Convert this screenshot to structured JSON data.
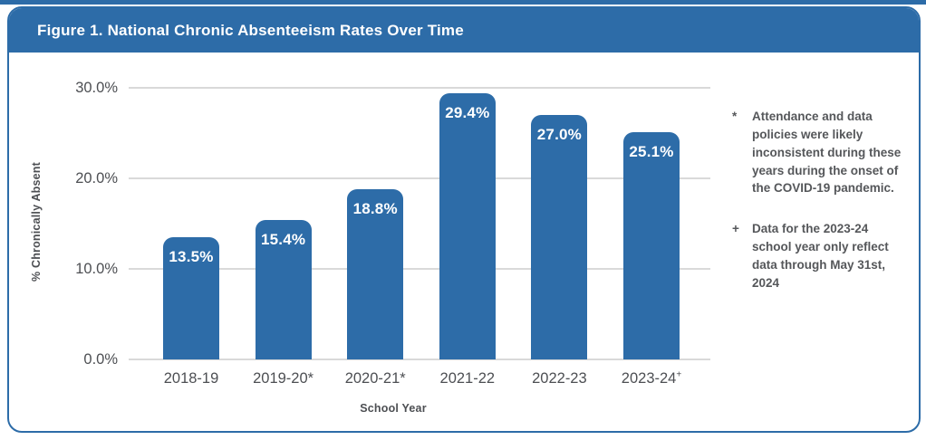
{
  "figure": {
    "title": "Figure 1. National Chronic Absenteeism Rates Over Time"
  },
  "chart_data": {
    "type": "bar",
    "title": "Figure 1. National Chronic Absenteeism Rates Over Time",
    "xlabel": "School Year",
    "ylabel": "% Chronically Absent",
    "ylim": [
      0,
      30
    ],
    "grid": true,
    "legend": "none",
    "categories": [
      {
        "label": "2018-19",
        "mark": "",
        "sup": false
      },
      {
        "label": "2019-20",
        "mark": "*",
        "sup": false
      },
      {
        "label": "2020-21",
        "mark": "*",
        "sup": false
      },
      {
        "label": "2021-22",
        "mark": "",
        "sup": false
      },
      {
        "label": "2022-23",
        "mark": "",
        "sup": false
      },
      {
        "label": "2023-24",
        "mark": "+",
        "sup": true
      }
    ],
    "values": [
      13.5,
      15.4,
      18.8,
      29.4,
      27.0,
      25.1
    ],
    "bar_labels": [
      "13.5%",
      "15.4%",
      "18.8%",
      "29.4%",
      "27.0%",
      "25.1%"
    ],
    "yticks": [
      {
        "value": 0,
        "label": "0.0%"
      },
      {
        "value": 10,
        "label": "10.0%"
      },
      {
        "value": 20,
        "label": "20.0%"
      },
      {
        "value": 30,
        "label": "30.0%"
      }
    ]
  },
  "footnotes": [
    {
      "marker": "*",
      "text": "Attendance and data policies were likely inconsistent during these years during the onset of the COVID-19 pandemic."
    },
    {
      "marker": "+",
      "text": "Data for the 2023-24 school year only reflect data through May 31st, 2024"
    }
  ],
  "colors": {
    "primary_blue": "#2d6ca8",
    "grid_gray": "#d9d9d9",
    "axis_text": "#4d4f53",
    "footnote_text": "#55575a",
    "bar_label_text": "#ffffff"
  }
}
